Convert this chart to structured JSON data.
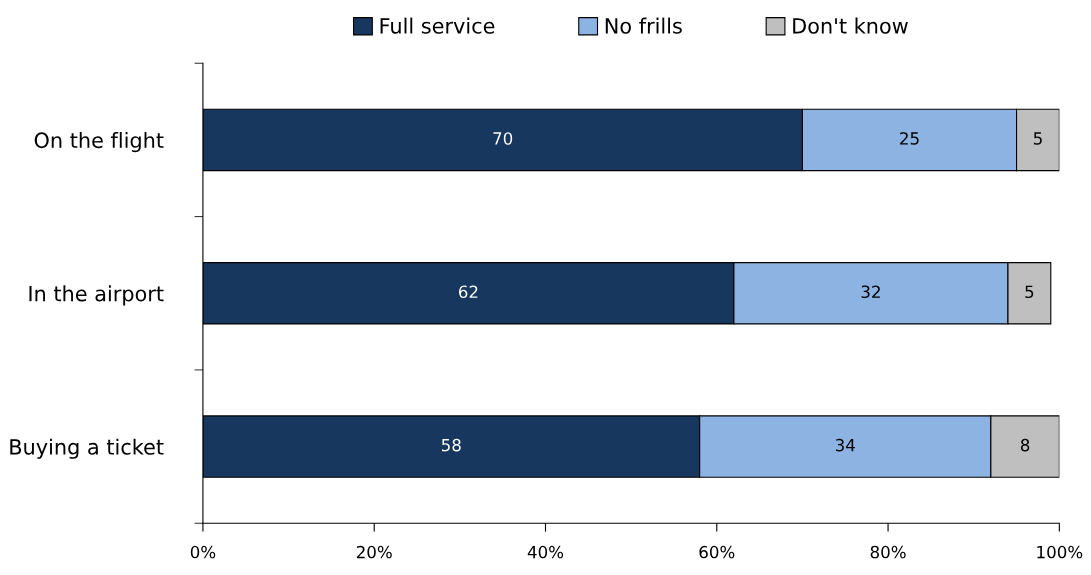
{
  "chart_data": {
    "type": "bar",
    "orientation": "horizontal",
    "stacked": true,
    "categories": [
      "On the flight",
      "In the airport",
      "Buying a ticket"
    ],
    "series": [
      {
        "name": "Full service",
        "color": "#17375e",
        "values": [
          70,
          62,
          58
        ]
      },
      {
        "name": "No frills",
        "color": "#8db3e2",
        "values": [
          25,
          32,
          34
        ]
      },
      {
        "name": "Don't know",
        "color": "#bfbfbf",
        "values": [
          5,
          5,
          8
        ]
      }
    ],
    "xlim": [
      0,
      100
    ],
    "xticks": [
      {
        "value": 0,
        "label": "0%"
      },
      {
        "value": 20,
        "label": "20%"
      },
      {
        "value": 40,
        "label": "40%"
      },
      {
        "value": 60,
        "label": "60%"
      },
      {
        "value": 80,
        "label": "80%"
      },
      {
        "value": 100,
        "label": "100%"
      }
    ],
    "data_labels": true,
    "legend": "top",
    "grid": false
  }
}
